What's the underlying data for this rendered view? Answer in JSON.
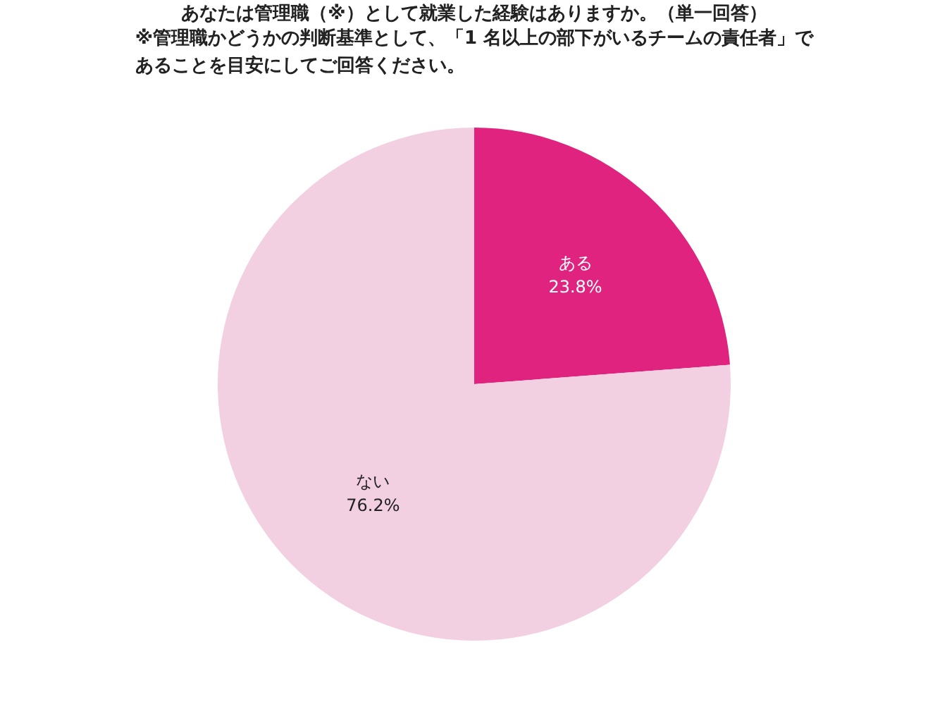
{
  "chart_data": {
    "type": "pie",
    "title": "あなたは管理職（※）として就業した経験はありますか。（単一回答）",
    "subtitle": "※管理職かどうかの判断基準として、「1 名以上の部下がいるチームの責任者」であることを目安にしてご回答ください。",
    "categories": [
      "ある",
      "ない"
    ],
    "values": [
      23.8,
      76.2
    ],
    "colors": [
      "#e0237f",
      "#f2cfe1"
    ],
    "value_labels": [
      "23.8%",
      "76.2%"
    ]
  }
}
